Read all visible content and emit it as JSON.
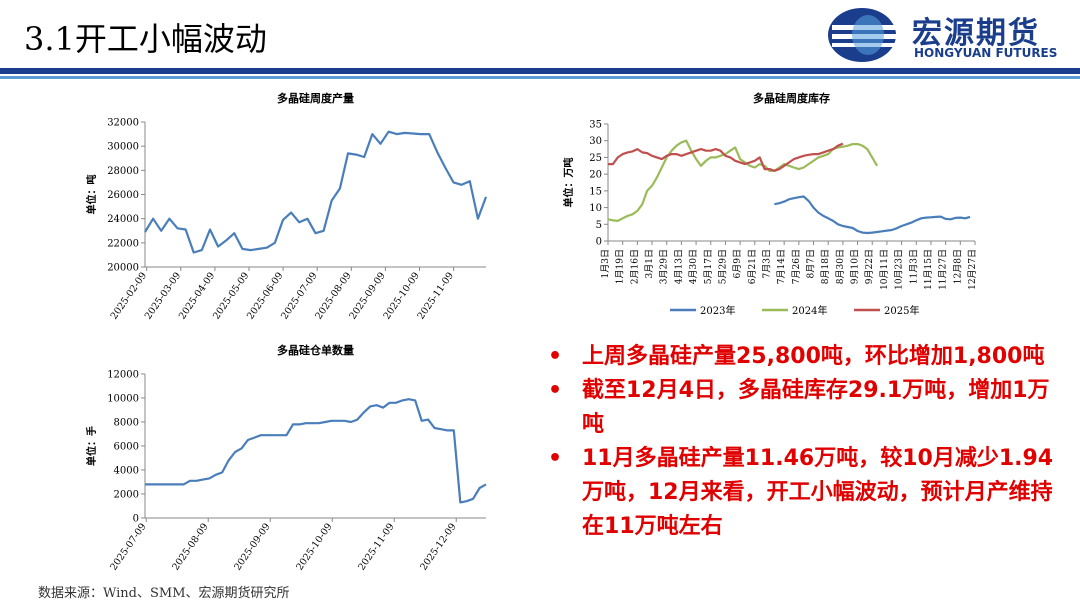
{
  "title": "3.1开工小幅波动",
  "logo": {
    "cn": "宏源期货",
    "en": "HONGYUAN FUTURES"
  },
  "source": "数据来源：Wind、SMM、宏源期货研究所",
  "bullets": [
    "上周多晶硅产量25,800吨，环比增加1,800吨",
    "截至12月4日，多晶硅库存29.1万吨，增加1万吨",
    "11月多晶硅产量11.46万吨，较10月减少1.94万吨，12月来看，开工小幅波动，预计月产维持在11万吨左右"
  ],
  "colors": {
    "brand": "#1a3e8c",
    "accent": "#e00000",
    "line_blue": "#4a7ebb",
    "line_green": "#9bbb59",
    "line_red": "#c0504d"
  },
  "chart_data": [
    {
      "type": "line",
      "title": "多晶硅周度产量",
      "ylabel": "单位：吨",
      "ylim": [
        20000,
        32000
      ],
      "yticks": [
        "20000",
        "22000",
        "24000",
        "26000",
        "28000",
        "30000",
        "32000"
      ],
      "xticks": [
        "2025-02-09",
        "2025-03-09",
        "2025-04-09",
        "2025-05-09",
        "2025-06-09",
        "2025-07-09",
        "2025-08-09",
        "2025-09-09",
        "2025-10-09",
        "2025-11-09"
      ],
      "series": [
        {
          "values": [
            22900,
            24000,
            23000,
            24000,
            23200,
            23100,
            21200,
            21400,
            23100,
            21700,
            22200,
            22800,
            21500,
            21400,
            21500,
            21600,
            22000,
            23900,
            24500,
            23700,
            24000,
            22800,
            23000,
            25500,
            26500,
            29400,
            29300,
            29100,
            31000,
            30200,
            31200,
            31000,
            31100,
            31050,
            31000,
            31000,
            29500,
            28200,
            27000,
            26800,
            27100,
            24000,
            25800
          ]
        }
      ]
    },
    {
      "type": "line",
      "title": "多晶硅周度库存",
      "ylabel": "单位：万吨",
      "ylim": [
        0,
        35
      ],
      "yticks": [
        "0",
        "5",
        "10",
        "15",
        "20",
        "25",
        "30",
        "35"
      ],
      "xticks": [
        "1月3日",
        "1月19日",
        "2月16日",
        "3月1日",
        "3月29日",
        "4月13日",
        "4月30日",
        "5月17日",
        "5月29日",
        "6月9日",
        "6月21日",
        "7月3日",
        "7月14日",
        "7月26日",
        "8月7日",
        "8月18日",
        "8月30日",
        "9月10日",
        "9月22日",
        "10月11日",
        "10月23日",
        "11月3日",
        "11月15日",
        "11月27日",
        "12月8日",
        "12月27日"
      ],
      "series": [
        {
          "name": "2023年",
          "values": [
            null,
            null,
            null,
            null,
            null,
            null,
            null,
            null,
            null,
            null,
            null,
            null,
            null,
            null,
            null,
            null,
            null,
            null,
            null,
            null,
            null,
            null,
            null,
            null,
            null,
            null,
            null,
            null,
            null,
            null,
            null,
            null,
            null,
            null,
            11.0,
            11.3,
            11.8,
            12.5,
            12.8,
            13.1,
            13.3,
            12.0,
            10.0,
            8.5,
            7.5,
            6.8,
            6.0,
            5.0,
            4.5,
            4.2,
            3.9,
            3.0,
            2.5,
            2.4,
            2.5,
            2.7,
            2.9,
            3.1,
            3.3,
            3.8,
            4.5,
            5.0,
            5.5,
            6.2,
            6.8,
            7.0,
            7.1,
            7.2,
            7.3,
            6.6,
            6.5,
            6.9,
            7.0,
            6.8,
            7.2
          ]
        },
        {
          "name": "2024年",
          "values": [
            6.5,
            6.2,
            6.0,
            6.8,
            7.5,
            8.0,
            9.0,
            11.0,
            15.0,
            16.5,
            19.0,
            22.0,
            25.0,
            27.0,
            28.5,
            29.5,
            30.0,
            27.0,
            24.5,
            22.5,
            24.0,
            25.0,
            25.0,
            25.5,
            26.0,
            27.0,
            28.0,
            24.5,
            23.5,
            22.5,
            22.0,
            23.0,
            22.5,
            21.0,
            21.0,
            22.0,
            23.0,
            22.5,
            22.0,
            21.5,
            22.0,
            23.0,
            24.0,
            25.0,
            25.5,
            26.0,
            27.5,
            28.0,
            28.2,
            28.5,
            29.0,
            29.0,
            28.5,
            27.5,
            25.0,
            22.5
          ]
        },
        {
          "name": "2025年",
          "values": [
            23.0,
            23.0,
            25.0,
            26.0,
            26.5,
            26.8,
            27.5,
            26.5,
            26.3,
            25.5,
            25.0,
            24.5,
            25.5,
            26.0,
            26.0,
            25.5,
            26.0,
            26.5,
            27.0,
            27.5,
            27.0,
            27.0,
            27.5,
            27.0,
            25.5,
            25.0,
            24.0,
            23.5,
            23.0,
            23.5,
            24.0,
            25.0,
            21.5,
            21.5,
            21.0,
            21.5,
            22.5,
            23.5,
            24.5,
            25.0,
            25.5,
            25.8,
            26.0,
            26.0,
            26.5,
            27.0,
            27.5,
            28.5,
            29.1
          ]
        }
      ],
      "legend_position": "bottom"
    },
    {
      "type": "line",
      "title": "多晶硅仓单数量",
      "ylabel": "单位：手",
      "ylim": [
        0,
        12000
      ],
      "yticks": [
        "0",
        "2000",
        "4000",
        "6000",
        "8000",
        "10000",
        "12000"
      ],
      "xticks": [
        "2025-07-09",
        "2025-08-09",
        "2025-09-09",
        "2025-10-09",
        "2025-11-09",
        "2025-12-09"
      ],
      "series": [
        {
          "values": [
            2800,
            2800,
            2800,
            2800,
            2800,
            2800,
            2800,
            3100,
            3100,
            3200,
            3300,
            3600,
            3800,
            4800,
            5500,
            5800,
            6500,
            6700,
            6900,
            6900,
            6900,
            6900,
            6900,
            7800,
            7800,
            7900,
            7900,
            7900,
            8000,
            8100,
            8100,
            8100,
            8000,
            8200,
            8800,
            9300,
            9400,
            9200,
            9600,
            9600,
            9800,
            9900,
            9800,
            8100,
            8200,
            7500,
            7400,
            7300,
            7300,
            1300,
            1400,
            1600,
            2500,
            2800
          ]
        }
      ]
    }
  ]
}
